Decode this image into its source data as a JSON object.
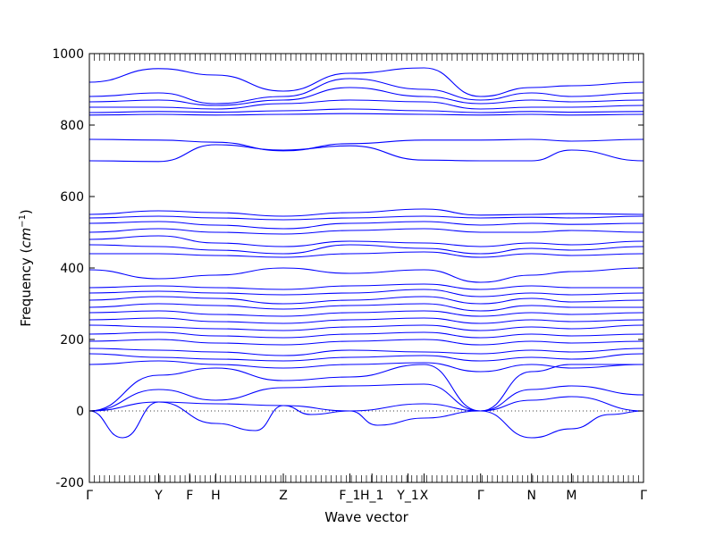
{
  "chart_data": {
    "type": "line",
    "xlabel": "Wave vector",
    "ylabel_text": "Frequency (",
    "ylabel_unit": "cm",
    "ylabel_exp": "−1",
    "ylabel_close": ")",
    "ylim": [
      -200,
      1000
    ],
    "yticks": [
      -200,
      0,
      200,
      400,
      600,
      800,
      1000
    ],
    "xlim": [
      0,
      1.0
    ],
    "high_symmetry_points": [
      {
        "label": "Γ",
        "x": 0.0
      },
      {
        "label": "Y",
        "x": 0.125
      },
      {
        "label": "F",
        "x": 0.181
      },
      {
        "label": "H",
        "x": 0.228
      },
      {
        "label": "Z",
        "x": 0.35
      },
      {
        "label": "F_1",
        "x": 0.47
      },
      {
        "label": "H_1",
        "x": 0.51
      },
      {
        "label": "Y_1",
        "x": 0.575
      },
      {
        "label": "X",
        "x": 0.604
      },
      {
        "label": "Γ",
        "x": 0.706
      },
      {
        "label": "N",
        "x": 0.798
      },
      {
        "label": "M",
        "x": 0.87
      },
      {
        "label": "Γ",
        "x": 1.0
      }
    ],
    "zero_reference_line": true,
    "series_color": "#0000ff",
    "series": [
      {
        "x": [
          0,
          0.125,
          0.228,
          0.35,
          0.47,
          0.604,
          0.706,
          0.798,
          0.87,
          1.0
        ],
        "values": [
          920,
          958,
          940,
          895,
          945,
          960,
          880,
          905,
          910,
          920
        ]
      },
      {
        "x": [
          0,
          0.125,
          0.228,
          0.35,
          0.47,
          0.604,
          0.706,
          0.798,
          0.87,
          1.0
        ],
        "values": [
          880,
          890,
          860,
          880,
          930,
          900,
          870,
          890,
          880,
          890
        ]
      },
      {
        "x": [
          0,
          0.125,
          0.228,
          0.35,
          0.47,
          0.604,
          0.706,
          0.798,
          0.87,
          1.0
        ],
        "values": [
          865,
          870,
          855,
          870,
          905,
          880,
          860,
          870,
          865,
          870
        ]
      },
      {
        "x": [
          0,
          0.125,
          0.228,
          0.35,
          0.47,
          0.604,
          0.706,
          0.798,
          0.87,
          1.0
        ],
        "values": [
          850,
          850,
          845,
          860,
          870,
          865,
          845,
          850,
          850,
          855
        ]
      },
      {
        "x": [
          0,
          0.125,
          0.228,
          0.35,
          0.47,
          0.604,
          0.706,
          0.798,
          0.87,
          1.0
        ],
        "values": [
          835,
          838,
          836,
          840,
          845,
          840,
          835,
          838,
          836,
          838
        ]
      },
      {
        "x": [
          0,
          0.125,
          0.228,
          0.35,
          0.47,
          0.604,
          0.706,
          0.798,
          0.87,
          1.0
        ],
        "values": [
          828,
          830,
          828,
          830,
          832,
          830,
          828,
          830,
          828,
          830
        ]
      },
      {
        "x": [
          0,
          0.125,
          0.228,
          0.35,
          0.47,
          0.604,
          0.706,
          0.798,
          0.87,
          1.0
        ],
        "values": [
          760,
          758,
          752,
          728,
          748,
          758,
          758,
          760,
          755,
          760
        ]
      },
      {
        "x": [
          0,
          0.125,
          0.228,
          0.35,
          0.47,
          0.604,
          0.706,
          0.798,
          0.87,
          1.0
        ],
        "values": [
          700,
          698,
          745,
          730,
          742,
          702,
          700,
          700,
          730,
          700
        ]
      },
      {
        "x": [
          0,
          0.125,
          0.228,
          0.35,
          0.47,
          0.604,
          0.706,
          0.798,
          0.87,
          1.0
        ],
        "values": [
          550,
          560,
          555,
          545,
          555,
          565,
          548,
          550,
          552,
          550
        ]
      },
      {
        "x": [
          0,
          0.125,
          0.228,
          0.35,
          0.47,
          0.604,
          0.706,
          0.798,
          0.87,
          1.0
        ],
        "values": [
          540,
          545,
          540,
          535,
          540,
          545,
          540,
          542,
          540,
          545
        ]
      },
      {
        "x": [
          0,
          0.125,
          0.228,
          0.35,
          0.47,
          0.604,
          0.706,
          0.798,
          0.87,
          1.0
        ],
        "values": [
          525,
          530,
          520,
          510,
          525,
          530,
          520,
          525,
          522,
          525
        ]
      },
      {
        "x": [
          0,
          0.125,
          0.228,
          0.35,
          0.47,
          0.604,
          0.706,
          0.798,
          0.87,
          1.0
        ],
        "values": [
          500,
          510,
          500,
          495,
          505,
          510,
          500,
          500,
          505,
          500
        ]
      },
      {
        "x": [
          0,
          0.125,
          0.228,
          0.35,
          0.47,
          0.604,
          0.706,
          0.798,
          0.87,
          1.0
        ],
        "values": [
          480,
          490,
          470,
          460,
          475,
          470,
          460,
          470,
          465,
          475
        ]
      },
      {
        "x": [
          0,
          0.125,
          0.228,
          0.35,
          0.47,
          0.604,
          0.706,
          0.798,
          0.87,
          1.0
        ],
        "values": [
          465,
          460,
          450,
          440,
          465,
          455,
          440,
          455,
          450,
          460
        ]
      },
      {
        "x": [
          0,
          0.125,
          0.228,
          0.35,
          0.47,
          0.604,
          0.706,
          0.798,
          0.87,
          1.0
        ],
        "values": [
          440,
          440,
          435,
          430,
          440,
          445,
          430,
          440,
          435,
          440
        ]
      },
      {
        "x": [
          0,
          0.125,
          0.228,
          0.35,
          0.47,
          0.604,
          0.706,
          0.798,
          0.87,
          1.0
        ],
        "values": [
          395,
          370,
          380,
          400,
          385,
          395,
          360,
          380,
          390,
          400
        ]
      },
      {
        "x": [
          0,
          0.125,
          0.228,
          0.35,
          0.47,
          0.604,
          0.706,
          0.798,
          0.87,
          1.0
        ],
        "values": [
          345,
          350,
          345,
          340,
          350,
          355,
          340,
          350,
          345,
          345
        ]
      },
      {
        "x": [
          0,
          0.125,
          0.228,
          0.35,
          0.47,
          0.604,
          0.706,
          0.798,
          0.87,
          1.0
        ],
        "values": [
          330,
          335,
          330,
          325,
          330,
          340,
          320,
          330,
          325,
          330
        ]
      },
      {
        "x": [
          0,
          0.125,
          0.228,
          0.35,
          0.47,
          0.604,
          0.706,
          0.798,
          0.87,
          1.0
        ],
        "values": [
          310,
          320,
          315,
          300,
          310,
          320,
          300,
          315,
          305,
          310
        ]
      },
      {
        "x": [
          0,
          0.125,
          0.228,
          0.35,
          0.47,
          0.604,
          0.706,
          0.798,
          0.87,
          1.0
        ],
        "values": [
          290,
          300,
          295,
          285,
          295,
          300,
          280,
          295,
          290,
          290
        ]
      },
      {
        "x": [
          0,
          0.125,
          0.228,
          0.35,
          0.47,
          0.604,
          0.706,
          0.798,
          0.87,
          1.0
        ],
        "values": [
          275,
          280,
          270,
          265,
          275,
          280,
          265,
          275,
          270,
          275
        ]
      },
      {
        "x": [
          0,
          0.125,
          0.228,
          0.35,
          0.47,
          0.604,
          0.706,
          0.798,
          0.87,
          1.0
        ],
        "values": [
          255,
          260,
          250,
          245,
          255,
          260,
          245,
          255,
          250,
          255
        ]
      },
      {
        "x": [
          0,
          0.125,
          0.228,
          0.35,
          0.47,
          0.604,
          0.706,
          0.798,
          0.87,
          1.0
        ],
        "values": [
          240,
          235,
          230,
          225,
          235,
          240,
          225,
          235,
          230,
          240
        ]
      },
      {
        "x": [
          0,
          0.125,
          0.228,
          0.35,
          0.47,
          0.604,
          0.706,
          0.798,
          0.87,
          1.0
        ],
        "values": [
          215,
          220,
          210,
          205,
          215,
          220,
          205,
          215,
          210,
          215
        ]
      },
      {
        "x": [
          0,
          0.125,
          0.228,
          0.35,
          0.47,
          0.604,
          0.706,
          0.798,
          0.87,
          1.0
        ],
        "values": [
          195,
          200,
          190,
          185,
          195,
          200,
          185,
          195,
          190,
          195
        ]
      },
      {
        "x": [
          0,
          0.125,
          0.228,
          0.35,
          0.47,
          0.604,
          0.706,
          0.798,
          0.87,
          1.0
        ],
        "values": [
          175,
          170,
          165,
          155,
          170,
          165,
          160,
          170,
          165,
          175
        ]
      },
      {
        "x": [
          0,
          0.125,
          0.228,
          0.35,
          0.47,
          0.604,
          0.706,
          0.798,
          0.87,
          1.0
        ],
        "values": [
          160,
          150,
          145,
          140,
          150,
          155,
          140,
          150,
          145,
          160
        ]
      },
      {
        "x": [
          0,
          0.125,
          0.228,
          0.35,
          0.47,
          0.604,
          0.706,
          0.798,
          0.87,
          1.0
        ],
        "values": [
          130,
          140,
          130,
          120,
          130,
          135,
          110,
          130,
          120,
          130
        ]
      },
      {
        "x": [
          0,
          0.125,
          0.228,
          0.35,
          0.47,
          0.604,
          0.706,
          0.798,
          0.87,
          1.0
        ],
        "values": [
          0,
          100,
          120,
          85,
          95,
          130,
          0,
          110,
          130,
          130
        ]
      },
      {
        "x": [
          0,
          0.125,
          0.228,
          0.35,
          0.47,
          0.604,
          0.706,
          0.798,
          0.87,
          1.0
        ],
        "values": [
          0,
          60,
          30,
          65,
          70,
          75,
          0,
          60,
          70,
          45
        ]
      },
      {
        "x": [
          0,
          0.06,
          0.125,
          0.228,
          0.3,
          0.35,
          0.47,
          0.52,
          0.604,
          0.706,
          0.798,
          0.87,
          0.94,
          1.0
        ],
        "values": [
          0,
          -75,
          25,
          -35,
          -55,
          15,
          0,
          -40,
          -20,
          0,
          -75,
          -50,
          -10,
          0
        ]
      },
      {
        "x": [
          0,
          0.125,
          0.228,
          0.35,
          0.4,
          0.47,
          0.604,
          0.706,
          0.798,
          0.87,
          1.0
        ],
        "values": [
          0,
          25,
          20,
          15,
          -10,
          0,
          20,
          0,
          30,
          40,
          0
        ]
      }
    ]
  }
}
